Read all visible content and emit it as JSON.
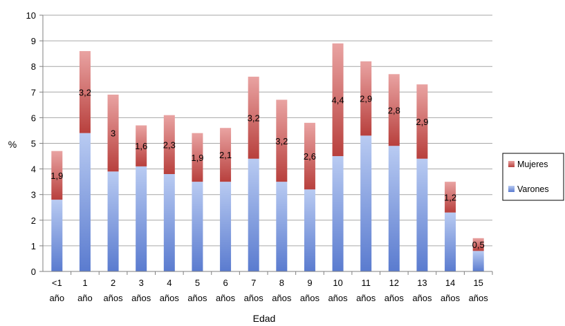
{
  "chart_data": {
    "type": "bar",
    "stacked": true,
    "categories": [
      [
        "<1",
        "año"
      ],
      [
        "1",
        "año"
      ],
      [
        "2",
        "años"
      ],
      [
        "3",
        "años"
      ],
      [
        "4",
        "años"
      ],
      [
        "5",
        "años"
      ],
      [
        "6",
        "años"
      ],
      [
        "7",
        "años"
      ],
      [
        "8",
        "años"
      ],
      [
        "9",
        "años"
      ],
      [
        "10",
        "años"
      ],
      [
        "11",
        "años"
      ],
      [
        "12",
        "años"
      ],
      [
        "13",
        "años"
      ],
      [
        "14",
        "años"
      ],
      [
        "15",
        "años"
      ]
    ],
    "series": [
      {
        "name": "Varones",
        "color": "#6f8fd8",
        "values": [
          2.8,
          5.4,
          3.9,
          4.1,
          3.8,
          3.5,
          3.5,
          4.4,
          3.5,
          3.2,
          4.5,
          5.3,
          4.9,
          4.4,
          2.3,
          0.8
        ]
      },
      {
        "name": "Mujeres",
        "color": "#c8504e",
        "values": [
          1.9,
          3.2,
          3,
          1.6,
          2.3,
          1.9,
          2.1,
          3.2,
          3.2,
          2.6,
          4.4,
          2.9,
          2.8,
          2.9,
          1.2,
          0.5
        ],
        "labels": [
          "1,9",
          "3,2",
          "3",
          "1,6",
          "2,3",
          "1,9",
          "2,1",
          "3,2",
          "3,2",
          "2,6",
          "4,4",
          "2,9",
          "2,8",
          "2,9",
          "1,2",
          "0,5"
        ]
      }
    ],
    "xlabel": "Edad",
    "ylabel": "%",
    "ylim": [
      0,
      10
    ],
    "yticks": [
      "0",
      "1",
      "2",
      "3",
      "4",
      "5",
      "6",
      "7",
      "8",
      "9",
      "10"
    ],
    "grid": true,
    "legend": {
      "position": "right",
      "order": [
        "Mujeres",
        "Varones"
      ]
    }
  }
}
